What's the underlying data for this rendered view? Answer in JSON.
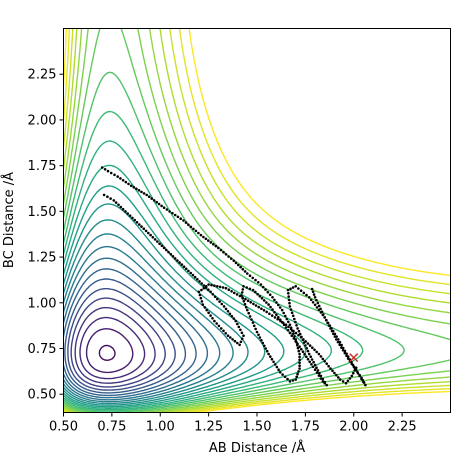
{
  "chart_data": {
    "type": "contour",
    "title": "",
    "xlabel": "AB Distance /Å",
    "ylabel": "BC Distance /Å",
    "xlim": [
      0.5,
      2.5
    ],
    "ylim": [
      0.4,
      2.5
    ],
    "xticks": [
      {
        "value": 0.5,
        "label": "0.50"
      },
      {
        "value": 0.75,
        "label": "0.75"
      },
      {
        "value": 1.0,
        "label": "1.00"
      },
      {
        "value": 1.25,
        "label": "1.25"
      },
      {
        "value": 1.5,
        "label": "1.50"
      },
      {
        "value": 1.75,
        "label": "1.75"
      },
      {
        "value": 2.0,
        "label": "2.00"
      },
      {
        "value": 2.25,
        "label": "2.25"
      }
    ],
    "yticks": [
      {
        "value": 0.5,
        "label": "0.50"
      },
      {
        "value": 0.75,
        "label": "0.75"
      },
      {
        "value": 1.0,
        "label": "1.00"
      },
      {
        "value": 1.25,
        "label": "1.25"
      },
      {
        "value": 1.5,
        "label": "1.50"
      },
      {
        "value": 1.75,
        "label": "1.75"
      },
      {
        "value": 2.0,
        "label": "2.00"
      },
      {
        "value": 2.25,
        "label": "2.25"
      }
    ],
    "grid": false,
    "colormap": "viridis",
    "contour_count": 26,
    "surface": {
      "type": "LEPS-like H3 potential energy surface",
      "minimum_distance": 0.74,
      "well_depth": 4.75
    },
    "trajectory": {
      "marker": "dot",
      "color": "#000000",
      "points": [
        [
          0.7,
          1.74
        ],
        [
          0.73,
          1.72
        ],
        [
          0.78,
          1.69
        ],
        [
          0.85,
          1.64
        ],
        [
          0.93,
          1.59
        ],
        [
          1.02,
          1.52
        ],
        [
          1.12,
          1.45
        ],
        [
          1.21,
          1.37
        ],
        [
          1.3,
          1.3
        ],
        [
          1.38,
          1.23
        ],
        [
          1.45,
          1.16
        ],
        [
          1.52,
          1.1
        ],
        [
          1.58,
          1.03
        ],
        [
          1.63,
          0.96
        ],
        [
          1.67,
          0.88
        ],
        [
          1.7,
          0.8
        ],
        [
          1.72,
          0.72
        ],
        [
          1.72,
          0.64
        ],
        [
          1.7,
          0.58
        ],
        [
          1.67,
          0.57
        ],
        [
          1.62,
          0.62
        ],
        [
          1.56,
          0.72
        ],
        [
          1.5,
          0.84
        ],
        [
          1.45,
          0.96
        ],
        [
          1.42,
          1.04
        ],
        [
          1.43,
          1.09
        ],
        [
          1.48,
          1.07
        ],
        [
          1.56,
          0.99
        ],
        [
          1.64,
          0.88
        ],
        [
          1.72,
          0.76
        ],
        [
          1.79,
          0.65
        ],
        [
          1.84,
          0.57
        ],
        [
          1.86,
          0.55
        ],
        [
          1.83,
          0.6
        ],
        [
          1.77,
          0.72
        ],
        [
          1.71,
          0.86
        ],
        [
          1.67,
          0.98
        ],
        [
          1.66,
          1.07
        ],
        [
          1.7,
          1.09
        ],
        [
          1.77,
          1.03
        ],
        [
          1.85,
          0.92
        ],
        [
          1.92,
          0.8
        ],
        [
          1.98,
          0.69
        ],
        [
          2.03,
          0.6
        ],
        [
          2.06,
          0.55
        ],
        [
          2.04,
          0.59
        ],
        [
          1.98,
          0.68
        ],
        [
          1.91,
          0.8
        ],
        [
          1.85,
          0.92
        ],
        [
          1.8,
          1.03
        ],
        [
          1.78,
          1.09
        ]
      ],
      "secondary_points": [
        [
          0.71,
          1.59
        ],
        [
          0.76,
          1.56
        ],
        [
          0.82,
          1.5
        ],
        [
          0.88,
          1.44
        ],
        [
          0.95,
          1.37
        ],
        [
          1.02,
          1.3
        ],
        [
          1.1,
          1.22
        ],
        [
          1.18,
          1.14
        ],
        [
          1.26,
          1.06
        ],
        [
          1.33,
          0.98
        ],
        [
          1.39,
          0.9
        ],
        [
          1.43,
          0.82
        ],
        [
          1.41,
          0.77
        ],
        [
          1.35,
          0.82
        ],
        [
          1.28,
          0.9
        ],
        [
          1.22,
          0.99
        ],
        [
          1.2,
          1.06
        ],
        [
          1.25,
          1.1
        ],
        [
          1.34,
          1.08
        ],
        [
          1.44,
          1.02
        ],
        [
          1.55,
          0.95
        ],
        [
          1.65,
          0.88
        ],
        [
          1.74,
          0.8
        ],
        [
          1.82,
          0.72
        ],
        [
          1.88,
          0.64
        ],
        [
          1.93,
          0.58
        ],
        [
          1.96,
          0.56
        ],
        [
          1.99,
          0.6
        ],
        [
          2.02,
          0.66
        ]
      ]
    },
    "end_marker": {
      "x": 2.0,
      "y": 0.7,
      "symbol": "x",
      "color": "#d62728"
    }
  }
}
